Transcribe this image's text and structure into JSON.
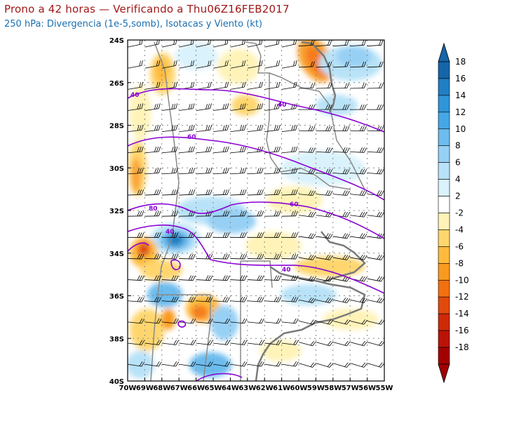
{
  "header": {
    "title": "Prono a 42 horas — Verificando a Thu06Z16FEB2017",
    "subtitle": "250 hPa: Divergencia (1e-5,somb), Isotacas y Viento (kt)"
  },
  "map": {
    "lat_labels": [
      "24S",
      "26S",
      "28S",
      "30S",
      "32S",
      "34S",
      "36S",
      "38S",
      "40S"
    ],
    "lon_labels": [
      "70W",
      "69W",
      "68W",
      "67W",
      "66W",
      "65W",
      "64W",
      "63W",
      "62W",
      "61W",
      "60W",
      "59W",
      "58W",
      "57W",
      "56W",
      "55W"
    ],
    "isotach_labels": [
      "40",
      "40",
      "60",
      "80",
      "60",
      "40",
      "40"
    ]
  },
  "colorbar": {
    "labels": [
      "18",
      "16",
      "14",
      "12",
      "10",
      "8",
      "6",
      "4",
      "2",
      "-2",
      "-4",
      "-6",
      "-8",
      "-10",
      "-12",
      "-14",
      "-16",
      "-18"
    ],
    "colors": [
      "#1565a8",
      "#1f7fc4",
      "#2d95d8",
      "#45a8e6",
      "#6cbcee",
      "#96d0f4",
      "#b8e2f8",
      "#d9f2fb",
      "#ffffff",
      "#fff3b8",
      "#ffd66e",
      "#ffba3d",
      "#f99a1e",
      "#f27010",
      "#e24a0c",
      "#cf2a08",
      "#bb1305",
      "#a30000"
    ]
  },
  "colors": {
    "isotach": "#8a00d4",
    "border": "#8a8a8a",
    "coast": "#7a7a7a",
    "title": "#a01818",
    "subtitle": "#1a6fb0"
  }
}
